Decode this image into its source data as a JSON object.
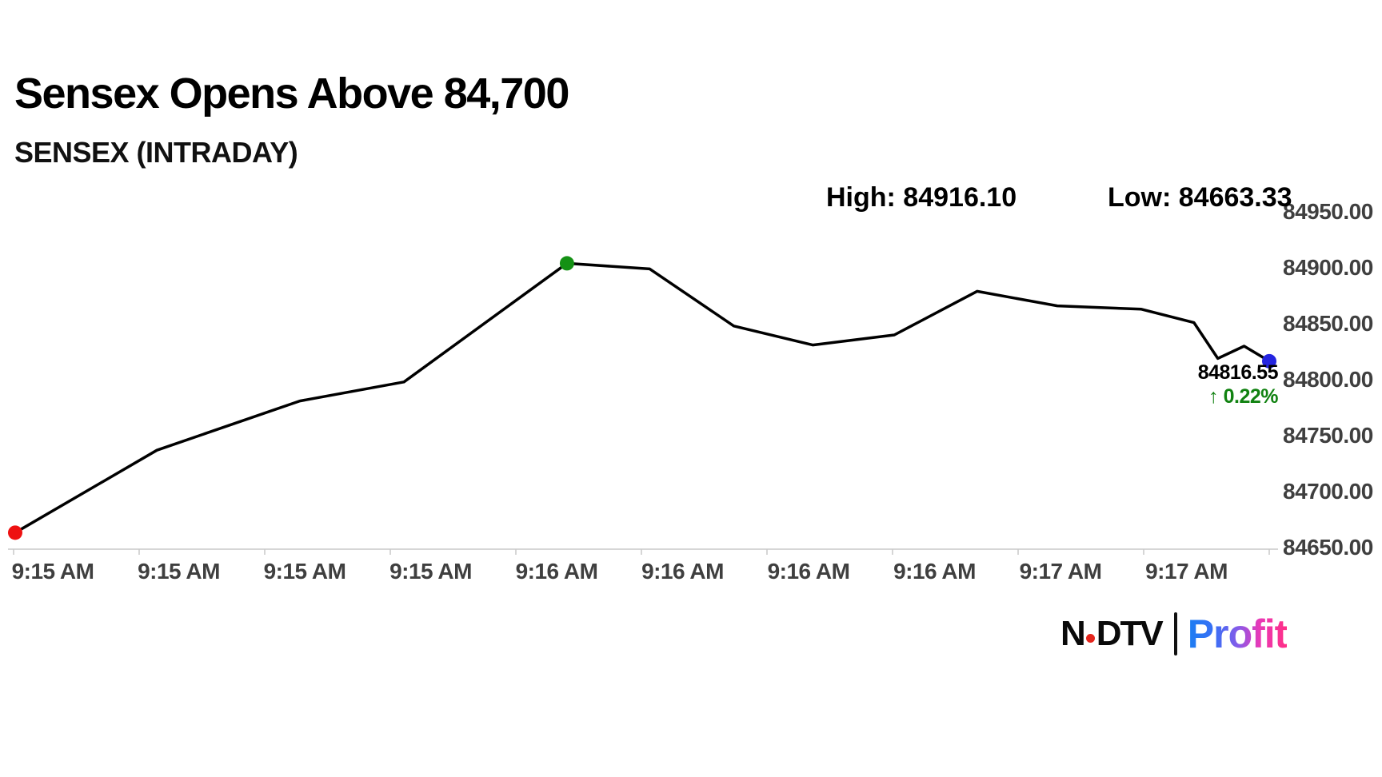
{
  "header": {
    "title": "Sensex Opens Above 84,700",
    "subtitle": "SENSEX (INTRADAY)",
    "high_label": "High: 84916.10",
    "low_label": "Low: 84663.33"
  },
  "chart_data": {
    "type": "line",
    "title": "SENSEX (INTRADAY)",
    "high": 84916.1,
    "low": 84663.33,
    "last_value": 84816.55,
    "change_pct": "0.22%",
    "change_direction": "up",
    "grid": false,
    "legend": "none",
    "x_axis": {
      "tick_labels": [
        "9:15 AM",
        "9:15 AM",
        "9:15 AM",
        "9:15 AM",
        "9:16 AM",
        "9:16 AM",
        "9:16 AM",
        "9:16 AM",
        "9:17 AM",
        "9:17 AM"
      ],
      "axis_line_color": "#c9c9c9"
    },
    "y_axis": {
      "side": "right",
      "min": 84650,
      "max": 84950,
      "step": 50,
      "tick_labels": [
        "84950.00",
        "84900.00",
        "84850.00",
        "84800.00",
        "84750.00",
        "84700.00",
        "84650.00"
      ]
    },
    "series": [
      {
        "name": "SENSEX",
        "color": "#000000",
        "points": [
          {
            "pos": 0.0,
            "value": 84663.33
          },
          {
            "pos": 0.113,
            "value": 84737
          },
          {
            "pos": 0.227,
            "value": 84781
          },
          {
            "pos": 0.31,
            "value": 84798
          },
          {
            "pos": 0.44,
            "value": 84904
          },
          {
            "pos": 0.506,
            "value": 84899
          },
          {
            "pos": 0.573,
            "value": 84848
          },
          {
            "pos": 0.636,
            "value": 84831
          },
          {
            "pos": 0.701,
            "value": 84840
          },
          {
            "pos": 0.767,
            "value": 84879
          },
          {
            "pos": 0.831,
            "value": 84866
          },
          {
            "pos": 0.898,
            "value": 84863
          },
          {
            "pos": 0.94,
            "value": 84851
          },
          {
            "pos": 0.959,
            "value": 84819
          },
          {
            "pos": 0.98,
            "value": 84830
          },
          {
            "pos": 1.0,
            "value": 84816.55
          }
        ]
      }
    ],
    "markers": [
      {
        "point_index": 0,
        "color": "#ee1111",
        "meaning": "session-low-open"
      },
      {
        "point_index": 4,
        "color": "#149114",
        "meaning": "session-peak"
      },
      {
        "point_index": 15,
        "color": "#2424e0",
        "meaning": "last-price"
      }
    ],
    "annotation": {
      "value_text": "84816.55",
      "change_text": "↑ 0.22%",
      "change_color": "#118211"
    }
  },
  "logo": {
    "ndtv_n": "N",
    "ndtv_rest": "DTV",
    "profit": "Profit",
    "dot_color": "#e4251c"
  },
  "colors": {
    "axis_label": "#3f3f3f",
    "line": "#000000",
    "background": "#ffffff"
  }
}
